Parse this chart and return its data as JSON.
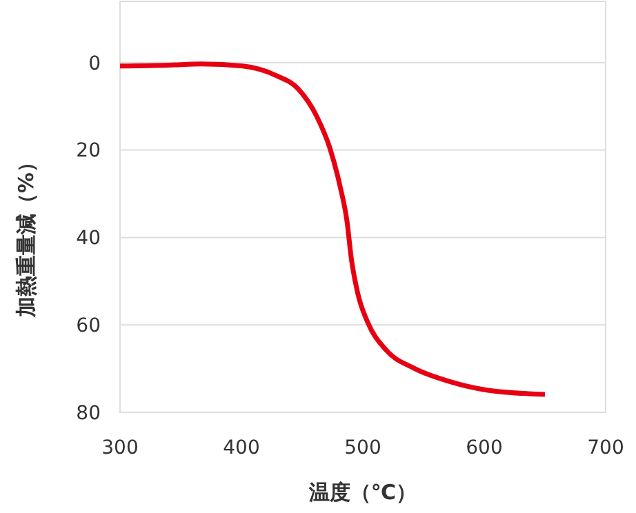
{
  "chart_data": {
    "type": "line",
    "xlabel": "温度（℃）",
    "ylabel": "加熱重量減（%）",
    "series": [
      {
        "color": "#e60012",
        "x": [
          300,
          340,
          367,
          401,
          428,
          447,
          462,
          473,
          481,
          487,
          490.5,
          496,
          504,
          519,
          542,
          572,
          602,
          650
        ],
        "values": [
          0.8,
          0.6,
          0.3,
          0.8,
          2.9,
          6.1,
          12.3,
          19.7,
          28,
          36.4,
          44.8,
          53,
          59.4,
          65.7,
          69.9,
          73,
          74.9,
          75.9
        ]
      }
    ],
    "xlim": [
      300,
      700
    ],
    "xticks": [
      300,
      400,
      500,
      600,
      700
    ],
    "ylim": [
      80,
      -14
    ],
    "yticks": [
      0,
      20,
      40,
      60,
      80
    ],
    "grid": "y",
    "marker": "none",
    "line_style": "solid"
  }
}
